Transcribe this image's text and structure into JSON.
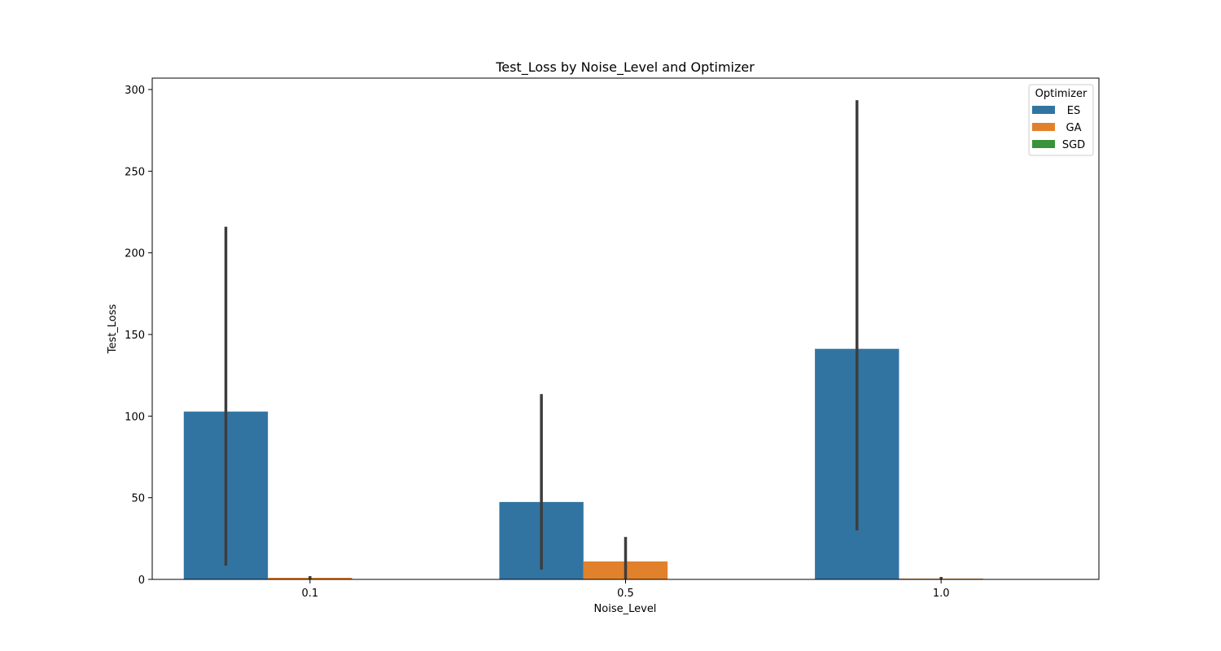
{
  "chart_data": {
    "type": "bar",
    "title": "Test_Loss by Noise_Level and Optimizer",
    "xlabel": "Noise_Level",
    "ylabel": "Test_Loss",
    "categories": [
      "0.1",
      "0.5",
      "1.0"
    ],
    "ylim": [
      0,
      307
    ],
    "yticks": [
      0,
      50,
      100,
      150,
      200,
      250,
      300
    ],
    "legend": {
      "title": "Optimizer",
      "placement": "upper-right"
    },
    "series": [
      {
        "name": "ES",
        "color": "#3274a1",
        "values": [
          102.8,
          47.4,
          141.2
        ],
        "error_low": [
          8.5,
          6.0,
          30.0
        ],
        "error_high": [
          216.0,
          113.5,
          293.5
        ]
      },
      {
        "name": "GA",
        "color": "#e1812c",
        "values": [
          1.0,
          11.0,
          0.5
        ],
        "error_low": [
          0.2,
          0.3,
          0.1
        ],
        "error_high": [
          2.0,
          26.0,
          1.5
        ]
      },
      {
        "name": "SGD",
        "color": "#3a923a",
        "values": [
          0.05,
          0.05,
          0.05
        ],
        "error_low": [
          0.0,
          0.0,
          0.0
        ],
        "error_high": [
          0.1,
          0.1,
          0.1
        ]
      }
    ]
  }
}
